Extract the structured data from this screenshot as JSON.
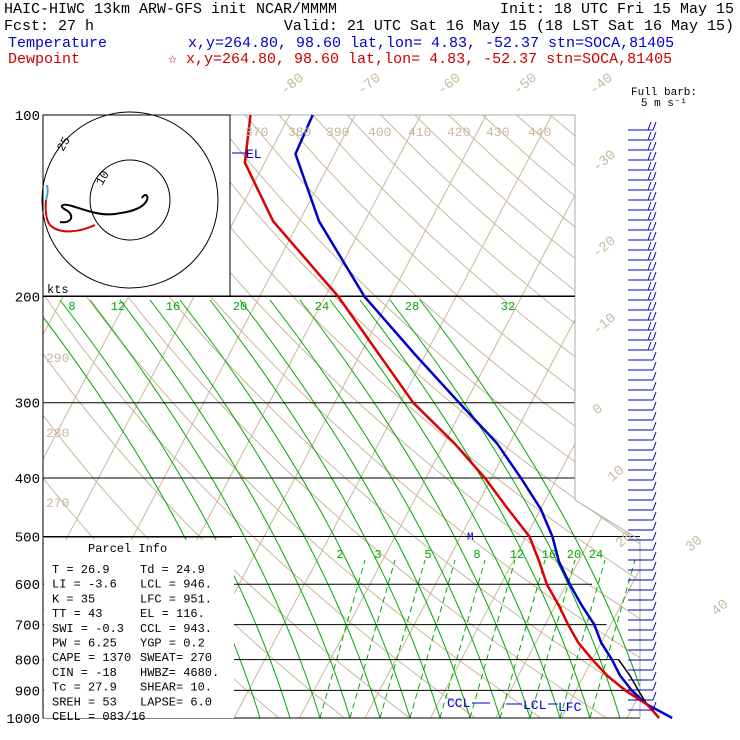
{
  "header": {
    "title_left": "HAIC-HIWC 13km ARW-GFS init   NCAR/MMMM",
    "init": "Init: 18 UTC Fri 15 May 15",
    "fcst": "Fcst:   27 h",
    "valid": "Valid: 21 UTC Sat 16 May 15 (18 LST Sat 16 May 15)",
    "temperature_label": "Temperature",
    "temperature_info": "x,y=264.80, 98.60   lat,lon=  4.83, -52.37   stn=SOCA,81405",
    "dewpoint_label": "Dewpoint",
    "dewpoint_info": "☆ x,y=264.80, 98.60   lat,lon=  4.83, -52.37   stn=SOCA,81405",
    "barb_title_1": "Full barb:",
    "barb_title_2": "5 m s⁻¹"
  },
  "colors": {
    "temperature": "#0000cc",
    "dewpoint": "#dd0000",
    "mixing_ratio": "#00aa00",
    "theta": "#c8b89a",
    "parcel": "#000000"
  },
  "chart_data": {
    "type": "line",
    "skewt": true,
    "pressure_levels": [
      100,
      200,
      300,
      400,
      500,
      600,
      700,
      800,
      900,
      1000
    ],
    "pressure_ticks": [
      "100",
      "200",
      "300",
      "400",
      "500",
      "600",
      "700",
      "800",
      "900",
      "1000"
    ],
    "temperature_ticks": [
      "-80",
      "-70",
      "-60",
      "-50",
      "-40",
      "-30",
      "-20",
      "-10",
      "0",
      "10",
      "20",
      "30",
      "40"
    ],
    "theta_labels": [
      "370",
      "380",
      "390",
      "400",
      "410",
      "420",
      "430",
      "440",
      "290",
      "280",
      "270"
    ],
    "mixing_ratio_upper": [
      "8",
      "12",
      "16",
      "20",
      "24",
      "28",
      "32"
    ],
    "mixing_ratio_lower": [
      "2",
      "3",
      "5",
      "8",
      "12",
      "16",
      "20",
      "24"
    ],
    "series": [
      {
        "name": "Temperature",
        "points": [
          [
            1000,
            26.9
          ],
          [
            975,
            24.5
          ],
          [
            950,
            22.0
          ],
          [
            900,
            18.5
          ],
          [
            850,
            15.5
          ],
          [
            800,
            13.0
          ],
          [
            750,
            10.0
          ],
          [
            700,
            7.5
          ],
          [
            650,
            4.0
          ],
          [
            600,
            0.5
          ],
          [
            550,
            -3.0
          ],
          [
            500,
            -6.0
          ],
          [
            450,
            -10.0
          ],
          [
            400,
            -15.5
          ],
          [
            350,
            -22.0
          ],
          [
            300,
            -31.0
          ],
          [
            250,
            -41.5
          ],
          [
            200,
            -54.0
          ],
          [
            150,
            -67.0
          ],
          [
            116,
            -76.0
          ],
          [
            100,
            -76.5
          ]
        ]
      },
      {
        "name": "Dewpoint",
        "points": [
          [
            1000,
            24.9
          ],
          [
            975,
            23.5
          ],
          [
            950,
            22.0
          ],
          [
            900,
            17.5
          ],
          [
            850,
            13.5
          ],
          [
            800,
            10.0
          ],
          [
            750,
            6.5
          ],
          [
            700,
            3.5
          ],
          [
            650,
            0.5
          ],
          [
            600,
            -3.0
          ],
          [
            550,
            -6.0
          ],
          [
            500,
            -9.5
          ],
          [
            450,
            -15.0
          ],
          [
            400,
            -21.0
          ],
          [
            350,
            -28.5
          ],
          [
            300,
            -38.0
          ],
          [
            250,
            -47.0
          ],
          [
            200,
            -58.0
          ],
          [
            150,
            -74.0
          ],
          [
            120,
            -83.0
          ],
          [
            100,
            -86.0
          ]
        ]
      }
    ],
    "parcel_labels": [
      "EL",
      "CCL",
      "LCL",
      "LFC",
      "M"
    ],
    "hodograph": {
      "ring_labels": [
        "10",
        "25"
      ],
      "unit": "kts"
    }
  },
  "parcel_info": {
    "title": "Parcel Info",
    "rows": [
      [
        "T   =   26.9",
        "Td  =   24.9"
      ],
      [
        "LI  =   -3.6",
        "LCL =   946."
      ],
      [
        "K   =     35",
        "LFC =   951."
      ],
      [
        "TT  =     43",
        "EL  =   116."
      ],
      [
        "SWI =   -0.3",
        "CCL =   943."
      ],
      [
        "PW  =   6.25",
        "YGP =    0.2"
      ],
      [
        "CAPE =  1370",
        "SWEAT=   270"
      ],
      [
        "CIN  =   -18",
        "HWBZ= 4680."
      ],
      [
        "Tc  =   27.9",
        "SHEAR=   10."
      ],
      [
        "SREH =    53",
        "LAPSE=   6.0"
      ],
      [
        "CELL = 083/16",
        ""
      ]
    ]
  }
}
